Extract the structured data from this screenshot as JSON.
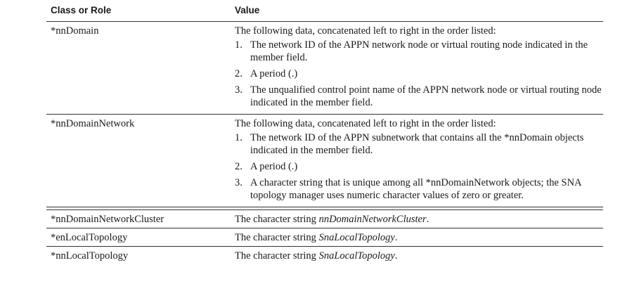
{
  "table": {
    "headers": {
      "class_or_role": "Class or Role",
      "value": "Value"
    },
    "rows": [
      {
        "role": "*nnDomain",
        "intro": "The following data, concatenated left to right in the order listed:",
        "items": [
          {
            "num": "1.",
            "text": "The network ID of the APPN network node or virtual routing node indicated in the member field."
          },
          {
            "num": "2.",
            "text": "A period (.)"
          },
          {
            "num": "3.",
            "text": "The unqualified control point name of the APPN network node or virtual routing node indicated in the member field."
          }
        ]
      },
      {
        "role": "*nnDomainNetwork",
        "intro": "The following data, concatenated left to right in the order listed:",
        "items": [
          {
            "num": "1.",
            "text": "The network ID of the APPN subnetwork that contains all the *nnDomain objects indicated in the member field."
          },
          {
            "num": "2.",
            "text": "A period (.)"
          },
          {
            "num": "3.",
            "text": "A character string that is unique among all *nnDomainNetwork objects; the SNA topology manager uses numeric character values of zero or greater."
          }
        ]
      },
      {
        "role": "*nnDomainNetworkCluster",
        "value_prefix": "The character string ",
        "value_italic": "nnDomainNetworkCluster",
        "value_suffix": "."
      },
      {
        "role": "*enLocalTopology",
        "value_prefix": "The character string ",
        "value_italic": "SnaLocalTopology",
        "value_suffix": "."
      },
      {
        "role": "*nnLocalTopology",
        "value_prefix": "The character string ",
        "value_italic": "SnaLocalTopology",
        "value_suffix": "."
      }
    ]
  }
}
